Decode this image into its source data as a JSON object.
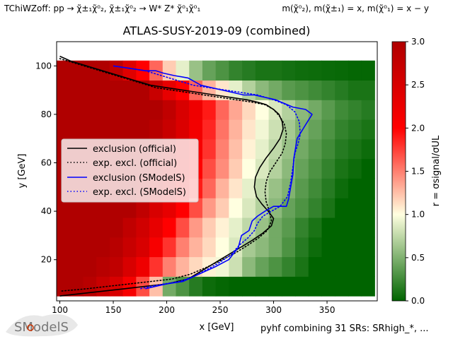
{
  "header": {
    "process": "TChiWZoff: pp → χ̃±₁χ̃⁰₂, χ̃±₁χ̃⁰₂ → W* Z* χ̃⁰₁χ̃⁰₁",
    "mass_relation": "m(χ̃⁰₂), m(χ̃±₁) = x, m(χ̃⁰₁) = x − y"
  },
  "footer": {
    "logo_text": "SModelS",
    "note": "pyhf combining 31 SRs: SRhigh_*, ..."
  },
  "chart_data": {
    "type": "heatmap",
    "title": "ATLAS-SUSY-2019-09 (combined)",
    "xlabel": "x [GeV]",
    "ylabel": "y [GeV]",
    "xlim": [
      97,
      397
    ],
    "ylim": [
      3,
      110
    ],
    "xticks": [
      100,
      150,
      200,
      250,
      300,
      350
    ],
    "yticks": [
      20,
      40,
      60,
      80,
      100
    ],
    "colorbar": {
      "label": "r = σsignal/σUL",
      "range": [
        0,
        3
      ],
      "ticks": [
        0.0,
        0.5,
        1.0,
        1.5,
        2.0,
        2.5,
        3.0
      ],
      "colors": [
        "#006400",
        "#ffffe0",
        "#ff0000",
        "#b00000"
      ]
    },
    "grid": {
      "x_start": 97,
      "x_step": 12.4,
      "nx": 24,
      "y_start": 5,
      "y_step": 8.1,
      "ny": 12,
      "r_values": [
        [
          3.0,
          3.0,
          2.9,
          2.7,
          2.5,
          2.1,
          1.7,
          1.25,
          0.45,
          0.3,
          0.15,
          0.05,
          0.02,
          0.0,
          0.0,
          0.0,
          0.0,
          0.0,
          0.0,
          0.0,
          0.0,
          0.0,
          0.0,
          0.0
        ],
        [
          3.0,
          3.0,
          3.0,
          2.9,
          2.8,
          2.5,
          2.2,
          1.8,
          1.5,
          1.3,
          1.15,
          1.05,
          0.95,
          0.8,
          0.55,
          0.4,
          0.3,
          0.2,
          0.1,
          0.0,
          0.0,
          0.0,
          0.0,
          0.0
        ],
        [
          3.0,
          3.0,
          3.0,
          3.0,
          2.9,
          2.7,
          2.5,
          2.1,
          1.8,
          1.5,
          1.3,
          1.15,
          1.0,
          0.85,
          0.65,
          0.55,
          0.45,
          0.3,
          0.15,
          0.05,
          0.0,
          0.0,
          0.0,
          0.0
        ],
        [
          3.0,
          3.0,
          3.0,
          3.0,
          3.0,
          2.8,
          2.6,
          2.3,
          2.0,
          1.7,
          1.4,
          1.2,
          1.05,
          0.9,
          0.75,
          0.6,
          0.45,
          0.35,
          0.2,
          0.1,
          0.0,
          0.0,
          0.0,
          0.0
        ],
        [
          3.0,
          3.0,
          3.0,
          3.0,
          3.0,
          3.0,
          2.8,
          2.5,
          2.3,
          2.0,
          1.7,
          1.4,
          1.2,
          1.0,
          0.85,
          0.7,
          0.55,
          0.4,
          0.3,
          0.2,
          0.1,
          0.0,
          0.0,
          0.0
        ],
        [
          3.0,
          3.0,
          3.0,
          3.0,
          3.0,
          3.0,
          2.9,
          2.7,
          2.5,
          2.2,
          1.9,
          1.6,
          1.3,
          1.1,
          0.9,
          0.75,
          0.6,
          0.5,
          0.35,
          0.25,
          0.15,
          0.05,
          0.0,
          0.0
        ],
        [
          3.0,
          3.0,
          3.0,
          3.0,
          3.0,
          3.0,
          3.0,
          2.8,
          2.6,
          2.3,
          2.0,
          1.7,
          1.45,
          1.2,
          1.0,
          0.85,
          0.7,
          0.55,
          0.4,
          0.3,
          0.2,
          0.1,
          0.05,
          0.0
        ],
        [
          3.0,
          3.0,
          3.0,
          3.0,
          3.0,
          3.0,
          3.0,
          2.9,
          2.7,
          2.4,
          2.1,
          1.8,
          1.5,
          1.25,
          1.05,
          0.9,
          0.75,
          0.6,
          0.45,
          0.35,
          0.25,
          0.15,
          0.1,
          0.05
        ],
        [
          3.0,
          3.0,
          3.0,
          3.0,
          3.0,
          3.0,
          3.0,
          2.9,
          2.7,
          2.45,
          2.15,
          1.85,
          1.55,
          1.3,
          1.1,
          0.95,
          0.8,
          0.65,
          0.5,
          0.4,
          0.3,
          0.2,
          0.15,
          0.1
        ],
        [
          3.0,
          3.0,
          3.0,
          3.0,
          3.0,
          3.0,
          3.0,
          3.0,
          2.8,
          2.5,
          2.2,
          1.9,
          1.6,
          1.35,
          1.15,
          1.0,
          0.85,
          0.7,
          0.55,
          0.45,
          0.35,
          0.25,
          0.2,
          0.15
        ],
        [
          3.0,
          3.0,
          3.0,
          3.0,
          3.0,
          3.0,
          3.0,
          2.7,
          2.3,
          2.0,
          1.6,
          1.3,
          1.1,
          0.9,
          0.7,
          0.55,
          0.45,
          0.35,
          0.3,
          0.25,
          0.2,
          0.15,
          0.1,
          0.1
        ],
        [
          3.0,
          3.0,
          3.0,
          3.0,
          2.8,
          2.4,
          2.0,
          1.6,
          1.2,
          0.9,
          0.6,
          0.4,
          0.3,
          0.2,
          0.15,
          0.1,
          0.1,
          0.08,
          0.06,
          0.05,
          0.04,
          0.03,
          0.02,
          0.02
        ]
      ]
    },
    "series": [
      {
        "name": "exclusion (official)",
        "color": "#000000",
        "style": "solid",
        "x": [
          100,
          110,
          125,
          140,
          155,
          170,
          185,
          200,
          215,
          230,
          245,
          260,
          275,
          285,
          293,
          300,
          305,
          308,
          309,
          306,
          300,
          293,
          287,
          283,
          282,
          284,
          289,
          295,
          300,
          298,
          290,
          280,
          265,
          250,
          235,
          220,
          200,
          180,
          160,
          140,
          120,
          100
        ],
        "y": [
          104,
          102,
          100,
          98,
          96,
          94,
          92,
          91,
          90,
          89,
          88,
          87,
          86,
          85,
          84,
          82,
          80,
          77,
          74,
          70,
          66,
          62,
          58,
          54,
          50,
          46,
          43,
          40,
          37,
          34,
          31,
          28,
          24,
          20,
          16,
          12,
          10,
          9,
          8,
          7,
          6,
          5
        ]
      },
      {
        "name": "exp. excl. (official)",
        "color": "#000000",
        "style": "dotted",
        "x": [
          100,
          115,
          130,
          145,
          160,
          175,
          190,
          205,
          220,
          235,
          250,
          265,
          280,
          292,
          300,
          306,
          310,
          312,
          311,
          308,
          302,
          296,
          293,
          292,
          293,
          296,
          298,
          294,
          286,
          276,
          265,
          252,
          238,
          222,
          205,
          185,
          165,
          145,
          125,
          100
        ],
        "y": [
          103,
          101,
          99,
          97,
          95,
          93,
          91,
          90,
          89,
          88,
          87,
          86,
          85,
          84,
          82,
          79,
          76,
          72,
          68,
          64,
          60,
          56,
          52,
          48,
          44,
          40,
          36,
          32,
          29,
          26,
          23,
          20,
          17,
          14,
          12,
          11,
          10,
          9,
          8,
          7
        ]
      },
      {
        "name": "exclusion (SModelS)",
        "color": "#0000ff",
        "style": "solid",
        "x": [
          150,
          165,
          180,
          190,
          197,
          207,
          220,
          232,
          252,
          262,
          272,
          282,
          292,
          302,
          318,
          330,
          336,
          329,
          322,
          319,
          318,
          316,
          314,
          312,
          306,
          300,
          292,
          285,
          280,
          277,
          270,
          267,
          258,
          245,
          230,
          215,
          200,
          190,
          180
        ],
        "y": [
          100,
          99,
          98,
          98,
          97,
          96,
          95,
          92,
          90,
          89,
          88,
          88,
          87,
          86,
          83,
          82,
          80,
          75,
          70,
          62,
          55,
          50,
          45,
          42,
          42,
          42,
          40,
          38,
          36,
          32,
          30,
          25,
          20,
          17,
          14,
          11,
          10,
          9,
          8
        ]
      },
      {
        "name": "exp. excl. (SModelS)",
        "color": "#0000ff",
        "style": "dotted",
        "x": [
          165,
          180,
          195,
          210,
          225,
          240,
          255,
          270,
          285,
          300,
          312,
          320,
          324,
          325,
          323,
          320,
          318,
          316,
          313,
          306,
          298,
          290,
          285,
          282,
          276,
          268,
          260,
          250,
          238,
          225,
          212,
          198,
          185,
          175
        ],
        "y": [
          99,
          98,
          96,
          94,
          92,
          91,
          90,
          89,
          88,
          86,
          84,
          81,
          77,
          72,
          68,
          64,
          58,
          52,
          46,
          42,
          40,
          38,
          35,
          32,
          29,
          26,
          22,
          19,
          16,
          13,
          11,
          10,
          9,
          8
        ]
      }
    ]
  }
}
